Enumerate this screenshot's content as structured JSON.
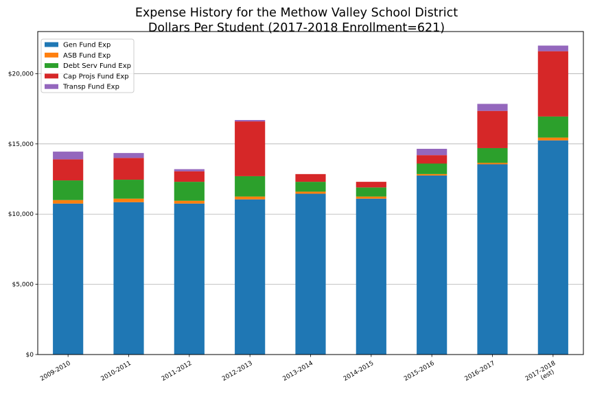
{
  "chart_data": {
    "type": "bar",
    "stacked": true,
    "title": "Expense History for the Methow Valley School District",
    "subtitle": "Dollars Per Student (2017-2018 Enrollment=621)",
    "categories": [
      "2009-2010",
      "2010-2011",
      "2011-2012",
      "2012-2013",
      "2013-2014",
      "2014-2015",
      "2015-2016",
      "2016-2017",
      "2017-2018\n(est)"
    ],
    "series": [
      {
        "name": "Gen Fund Exp",
        "color": "#1f77b4",
        "values": [
          10750,
          10850,
          10750,
          11050,
          11450,
          11100,
          12750,
          13550,
          15250
        ]
      },
      {
        "name": "ASB Fund Exp",
        "color": "#ff7f0e",
        "values": [
          250,
          250,
          200,
          200,
          150,
          150,
          100,
          100,
          200
        ]
      },
      {
        "name": "Debt Serv Fund Exp",
        "color": "#2ca02c",
        "values": [
          1400,
          1350,
          1350,
          1450,
          700,
          650,
          750,
          1050,
          1500
        ]
      },
      {
        "name": "Cap Projs Fund Exp",
        "color": "#d62728",
        "values": [
          1500,
          1550,
          750,
          3900,
          550,
          400,
          600,
          2650,
          4650
        ]
      },
      {
        "name": "Transp Fund Exp",
        "color": "#9467bd",
        "values": [
          550,
          350,
          150,
          100,
          0,
          0,
          450,
          500,
          400
        ]
      }
    ],
    "ylim": [
      0,
      23000
    ],
    "yticks": [
      0,
      5000,
      10000,
      15000,
      20000
    ],
    "ytick_labels": [
      "$0",
      "$5,000",
      "$10,000",
      "$15,000",
      "$20,000"
    ],
    "grid": "horizontal",
    "legend_position": "top-left",
    "xlabel": "",
    "ylabel": ""
  }
}
